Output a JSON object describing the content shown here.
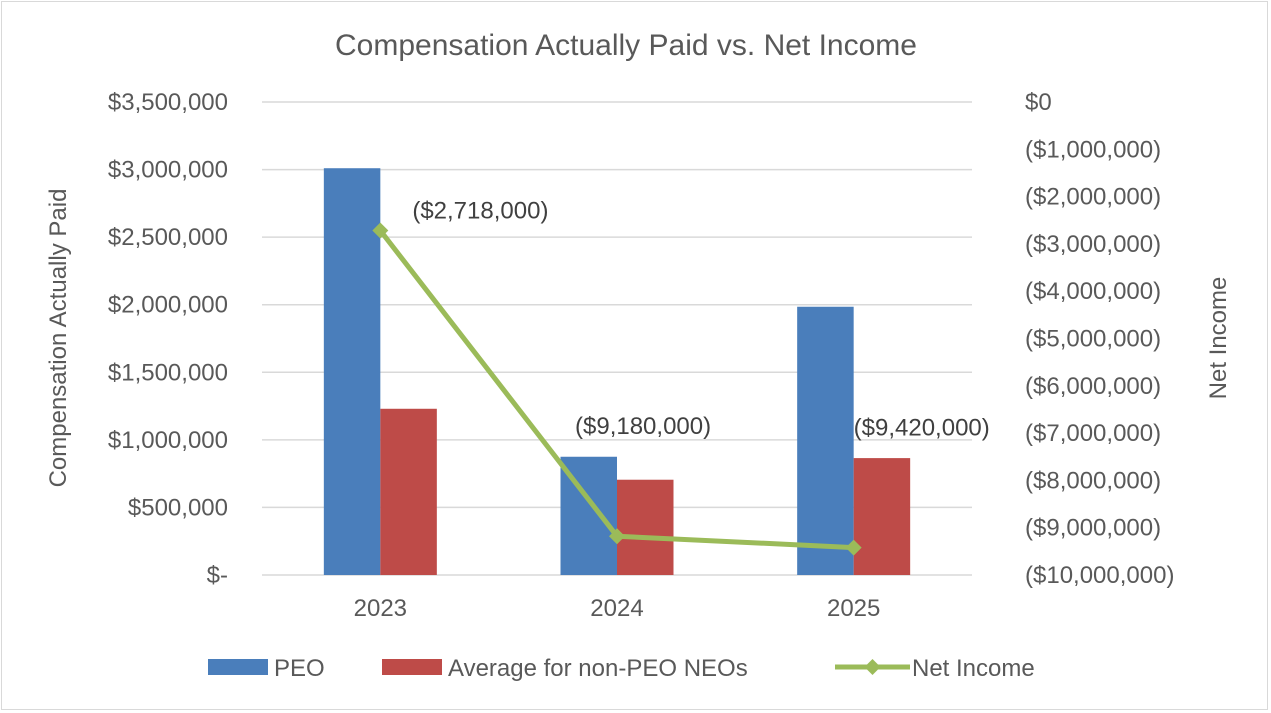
{
  "chart_data": {
    "type": "bar",
    "title": "Compensation Actually Paid vs. Net Income",
    "categories": [
      "2023",
      "2024",
      "2025"
    ],
    "ylabel": "Compensation Actually Paid",
    "y2label": "Net Income",
    "ylim": [
      0,
      3500000
    ],
    "y2lim": [
      -10000000,
      0
    ],
    "yticks": [
      "$-",
      "$500,000",
      "$1,000,000",
      "$1,500,000",
      "$2,000,000",
      "$2,500,000",
      "$3,000,000",
      "$3,500,000"
    ],
    "y2ticks": [
      "($10,000,000)",
      "($9,000,000)",
      "($8,000,000)",
      "($7,000,000)",
      "($6,000,000)",
      "($5,000,000)",
      "($4,000,000)",
      "($3,000,000)",
      "($2,000,000)",
      "($1,000,000)",
      "$0"
    ],
    "grid": true,
    "legend_position": "bottom",
    "series": [
      {
        "name": "PEO",
        "type": "bar",
        "axis": "left",
        "color": "#4a7ebb",
        "values": [
          3010000,
          875000,
          1985000
        ]
      },
      {
        "name": "Average for non-PEO NEOs",
        "type": "bar",
        "axis": "left",
        "color": "#be4b48",
        "values": [
          1230000,
          705000,
          865000
        ]
      },
      {
        "name": "Net Income",
        "type": "line",
        "axis": "right",
        "color": "#9bbb59",
        "marker": "diamond",
        "values": [
          -2718000,
          -9180000,
          -9420000
        ],
        "labels": [
          "($2,718,000)",
          "($9,180,000)",
          "($9,420,000)"
        ]
      }
    ]
  }
}
